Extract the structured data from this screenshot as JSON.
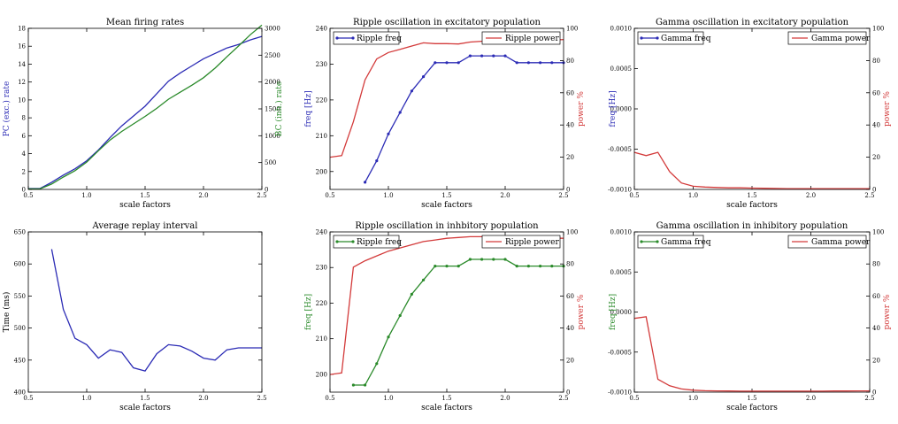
{
  "chart_data": [
    {
      "type": "line",
      "title": "Mean firing rates",
      "xlabel": "scale factors",
      "ylabel": "PC (exc.) rate",
      "ylabel_color": "#2b2bb5",
      "y2label": "BC (inh.) rate",
      "y2label_color": "#2a8a2a",
      "xlim": [
        0.5,
        2.5
      ],
      "ylim": [
        0,
        18
      ],
      "y2lim": [
        0,
        3000
      ],
      "xticks": [
        "0.5",
        "1.0",
        "1.5",
        "2.0",
        "2.5"
      ],
      "yticks": [
        "0",
        "2",
        "4",
        "6",
        "8",
        "10",
        "12",
        "14",
        "16",
        "18"
      ],
      "y2ticks": [
        "0",
        "500",
        "1000",
        "1500",
        "2000",
        "2500",
        "3000"
      ],
      "legend": null,
      "series": [
        {
          "axis": "left",
          "color": "#2b2bb5",
          "markers": false,
          "x": [
            0.5,
            0.6,
            0.7,
            0.8,
            0.9,
            1.0,
            1.1,
            1.2,
            1.3,
            1.4,
            1.5,
            1.6,
            1.7,
            1.8,
            1.9,
            2.0,
            2.1,
            2.2,
            2.3,
            2.4,
            2.5
          ],
          "y": [
            0.1,
            0.1,
            0.8,
            1.6,
            2.3,
            3.2,
            4.4,
            5.8,
            7.1,
            8.2,
            9.3,
            10.7,
            12.1,
            13.0,
            13.8,
            14.6,
            15.2,
            15.8,
            16.2,
            16.7,
            17.1
          ]
        },
        {
          "axis": "right",
          "color": "#2a8a2a",
          "markers": false,
          "x": [
            0.5,
            0.6,
            0.7,
            0.8,
            0.9,
            1.0,
            1.1,
            1.2,
            1.3,
            1.4,
            1.5,
            1.6,
            1.7,
            1.8,
            1.9,
            2.0,
            2.1,
            2.2,
            2.3,
            2.4,
            2.5
          ],
          "y": [
            10,
            10,
            100,
            230,
            350,
            510,
            720,
            920,
            1080,
            1220,
            1360,
            1510,
            1680,
            1810,
            1940,
            2080,
            2260,
            2470,
            2670,
            2880,
            3060
          ]
        }
      ]
    },
    {
      "type": "line",
      "title": "Ripple oscillation in excitatory population",
      "xlabel": "scale factors",
      "ylabel": "freq [Hz]",
      "ylabel_color": "#2b2bb5",
      "y2label": "power %",
      "y2label_color": "#d33a3a",
      "xlim": [
        0.5,
        2.5
      ],
      "ylim": [
        195,
        240
      ],
      "y2lim": [
        0,
        100
      ],
      "xticks": [
        "0.5",
        "1.0",
        "1.5",
        "2.0",
        "2.5"
      ],
      "yticks": [
        "200",
        "210",
        "220",
        "230",
        "240"
      ],
      "y2ticks": [
        "0",
        "20",
        "40",
        "60",
        "80",
        "100"
      ],
      "legend": [
        {
          "label": "Ripple freq",
          "color": "#2b2bb5",
          "markers": true
        },
        {
          "label": "Ripple power",
          "color": "#d33a3a",
          "markers": false
        }
      ],
      "series": [
        {
          "name": "Ripple freq",
          "axis": "left",
          "color": "#2b2bb5",
          "markers": true,
          "x": [
            0.8,
            0.9,
            1.0,
            1.1,
            1.2,
            1.3,
            1.4,
            1.5,
            1.6,
            1.7,
            1.8,
            1.9,
            2.0,
            2.1,
            2.2,
            2.3,
            2.4,
            2.5
          ],
          "y": [
            197.0,
            203.0,
            210.5,
            216.5,
            222.5,
            226.5,
            230.4,
            230.4,
            230.4,
            232.3,
            232.3,
            232.3,
            232.3,
            230.4,
            230.4,
            230.4,
            230.4,
            230.4
          ]
        },
        {
          "name": "Ripple power",
          "axis": "right",
          "color": "#d33a3a",
          "markers": false,
          "x": [
            0.5,
            0.6,
            0.7,
            0.8,
            0.9,
            1.0,
            1.1,
            1.2,
            1.3,
            1.4,
            1.5,
            1.6,
            1.7,
            1.8,
            1.9,
            2.0,
            2.1,
            2.2,
            2.3,
            2.4,
            2.5
          ],
          "y": [
            20,
            21,
            42,
            68,
            81,
            85,
            87,
            89,
            91,
            90.5,
            90.5,
            90.3,
            91.5,
            92,
            92.3,
            92.5,
            92.6,
            92.6,
            92.7,
            92.8,
            93
          ]
        }
      ]
    },
    {
      "type": "line",
      "title": "Gamma oscillation in excitatory population",
      "xlabel": "scale factors",
      "ylabel": "freq [Hz]",
      "ylabel_color": "#2b2bb5",
      "y2label": "power %",
      "y2label_color": "#d33a3a",
      "xlim": [
        0.5,
        2.5
      ],
      "ylim": [
        -0.001,
        0.001
      ],
      "y2lim": [
        0,
        100
      ],
      "xticks": [
        "0.5",
        "1.0",
        "1.5",
        "2.0",
        "2.5"
      ],
      "yticks": [
        "-0.0010",
        "-0.0005",
        "0.0000",
        "0.0005",
        "0.0010"
      ],
      "y2ticks": [
        "0",
        "20",
        "40",
        "60",
        "80",
        "100"
      ],
      "legend": [
        {
          "label": "Gamma freq",
          "color": "#2b2bb5",
          "markers": true
        },
        {
          "label": "Gamma power",
          "color": "#d33a3a",
          "markers": false
        }
      ],
      "series": [
        {
          "name": "Gamma power",
          "axis": "right",
          "color": "#d33a3a",
          "markers": false,
          "x": [
            0.5,
            0.6,
            0.7,
            0.8,
            0.9,
            1.0,
            1.1,
            1.2,
            1.3,
            1.4,
            1.5,
            1.6,
            1.7,
            1.8,
            1.9,
            2.0,
            2.1,
            2.2,
            2.3,
            2.4,
            2.5
          ],
          "y": [
            23,
            21,
            23,
            11,
            4,
            2,
            1.5,
            1.2,
            1,
            1,
            0.8,
            0.7,
            0.6,
            0.5,
            0.5,
            0.5,
            0.5,
            0.5,
            0.5,
            0.5,
            0.5
          ]
        }
      ]
    },
    {
      "type": "line",
      "title": "Average replay interval",
      "xlabel": "scale factors",
      "ylabel": "Time (ms)",
      "ylabel_color": "#000000",
      "xlim": [
        0.5,
        2.5
      ],
      "ylim": [
        400,
        650
      ],
      "xticks": [
        "0.5",
        "1.0",
        "1.5",
        "2.0",
        "2.5"
      ],
      "yticks": [
        "400",
        "450",
        "500",
        "550",
        "600",
        "650"
      ],
      "legend": null,
      "series": [
        {
          "axis": "left",
          "color": "#2b2bb5",
          "markers": false,
          "x": [
            0.7,
            0.8,
            0.9,
            1.0,
            1.1,
            1.2,
            1.3,
            1.4,
            1.5,
            1.6,
            1.7,
            1.8,
            1.9,
            2.0,
            2.1,
            2.2,
            2.3,
            2.4,
            2.5
          ],
          "y": [
            623,
            529,
            484,
            474,
            453,
            466,
            462,
            438,
            433,
            460,
            474,
            472,
            464,
            453,
            450,
            466,
            469,
            469,
            469
          ]
        }
      ]
    },
    {
      "type": "line",
      "title": "Ripple oscillation in inhbitory population",
      "xlabel": "scale factors",
      "ylabel": "freq [Hz]",
      "ylabel_color": "#2a8a2a",
      "y2label": "power %",
      "y2label_color": "#d33a3a",
      "xlim": [
        0.5,
        2.5
      ],
      "ylim": [
        195,
        240
      ],
      "y2lim": [
        0,
        100
      ],
      "xticks": [
        "0.5",
        "1.0",
        "1.5",
        "2.0",
        "2.5"
      ],
      "yticks": [
        "200",
        "210",
        "220",
        "230",
        "240"
      ],
      "y2ticks": [
        "0",
        "20",
        "40",
        "60",
        "80",
        "100"
      ],
      "legend": [
        {
          "label": "Ripple freq",
          "color": "#2a8a2a",
          "markers": true
        },
        {
          "label": "Ripple power",
          "color": "#d33a3a",
          "markers": false
        }
      ],
      "series": [
        {
          "name": "Ripple freq",
          "axis": "left",
          "color": "#2a8a2a",
          "markers": true,
          "x": [
            0.7,
            0.8,
            0.9,
            1.0,
            1.1,
            1.2,
            1.3,
            1.4,
            1.5,
            1.6,
            1.7,
            1.8,
            1.9,
            2.0,
            2.1,
            2.2,
            2.3,
            2.4,
            2.5
          ],
          "y": [
            197.0,
            197.0,
            203.0,
            210.5,
            216.5,
            222.5,
            226.5,
            230.4,
            230.4,
            230.4,
            232.3,
            232.3,
            232.3,
            232.3,
            230.4,
            230.4,
            230.4,
            230.4,
            230.4
          ]
        },
        {
          "name": "Ripple power",
          "axis": "right",
          "color": "#d33a3a",
          "markers": false,
          "x": [
            0.5,
            0.6,
            0.7,
            0.8,
            0.9,
            1.0,
            1.1,
            1.2,
            1.3,
            1.4,
            1.5,
            1.6,
            1.7,
            1.8,
            1.9,
            2.0,
            2.1,
            2.2,
            2.3,
            2.4,
            2.5
          ],
          "y": [
            11,
            12,
            78,
            82,
            85,
            88,
            90,
            92,
            94,
            95,
            96,
            96.5,
            97,
            97,
            97,
            97,
            96.5,
            96.5,
            96.3,
            96.2,
            96
          ]
        }
      ]
    },
    {
      "type": "line",
      "title": "Gamma oscillation in inhibitory population",
      "xlabel": "scale factors",
      "ylabel": "freq [Hz]",
      "ylabel_color": "#2a8a2a",
      "y2label": "power %",
      "y2label_color": "#d33a3a",
      "xlim": [
        0.5,
        2.5
      ],
      "ylim": [
        -0.001,
        0.001
      ],
      "y2lim": [
        0,
        100
      ],
      "xticks": [
        "0.5",
        "1.0",
        "1.5",
        "2.0",
        "2.5"
      ],
      "yticks": [
        "-0.0010",
        "-0.0005",
        "0.0000",
        "0.0005",
        "0.0010"
      ],
      "y2ticks": [
        "0",
        "20",
        "40",
        "60",
        "80",
        "100"
      ],
      "legend": [
        {
          "label": "Gamma freq",
          "color": "#2a8a2a",
          "markers": true
        },
        {
          "label": "Gamma power",
          "color": "#d33a3a",
          "markers": false
        }
      ],
      "series": [
        {
          "name": "Gamma power",
          "axis": "right",
          "color": "#d33a3a",
          "markers": false,
          "x": [
            0.5,
            0.6,
            0.7,
            0.8,
            0.9,
            1.0,
            1.1,
            1.2,
            1.3,
            1.4,
            1.5,
            1.6,
            1.7,
            1.8,
            1.9,
            2.0,
            2.1,
            2.2,
            2.3,
            2.4,
            2.5
          ],
          "y": [
            46,
            47,
            8,
            4,
            2,
            1.2,
            0.9,
            0.8,
            0.7,
            0.6,
            0.6,
            0.6,
            0.6,
            0.6,
            0.6,
            0.6,
            0.6,
            0.7,
            0.7,
            0.8,
            0.8
          ]
        }
      ]
    }
  ]
}
